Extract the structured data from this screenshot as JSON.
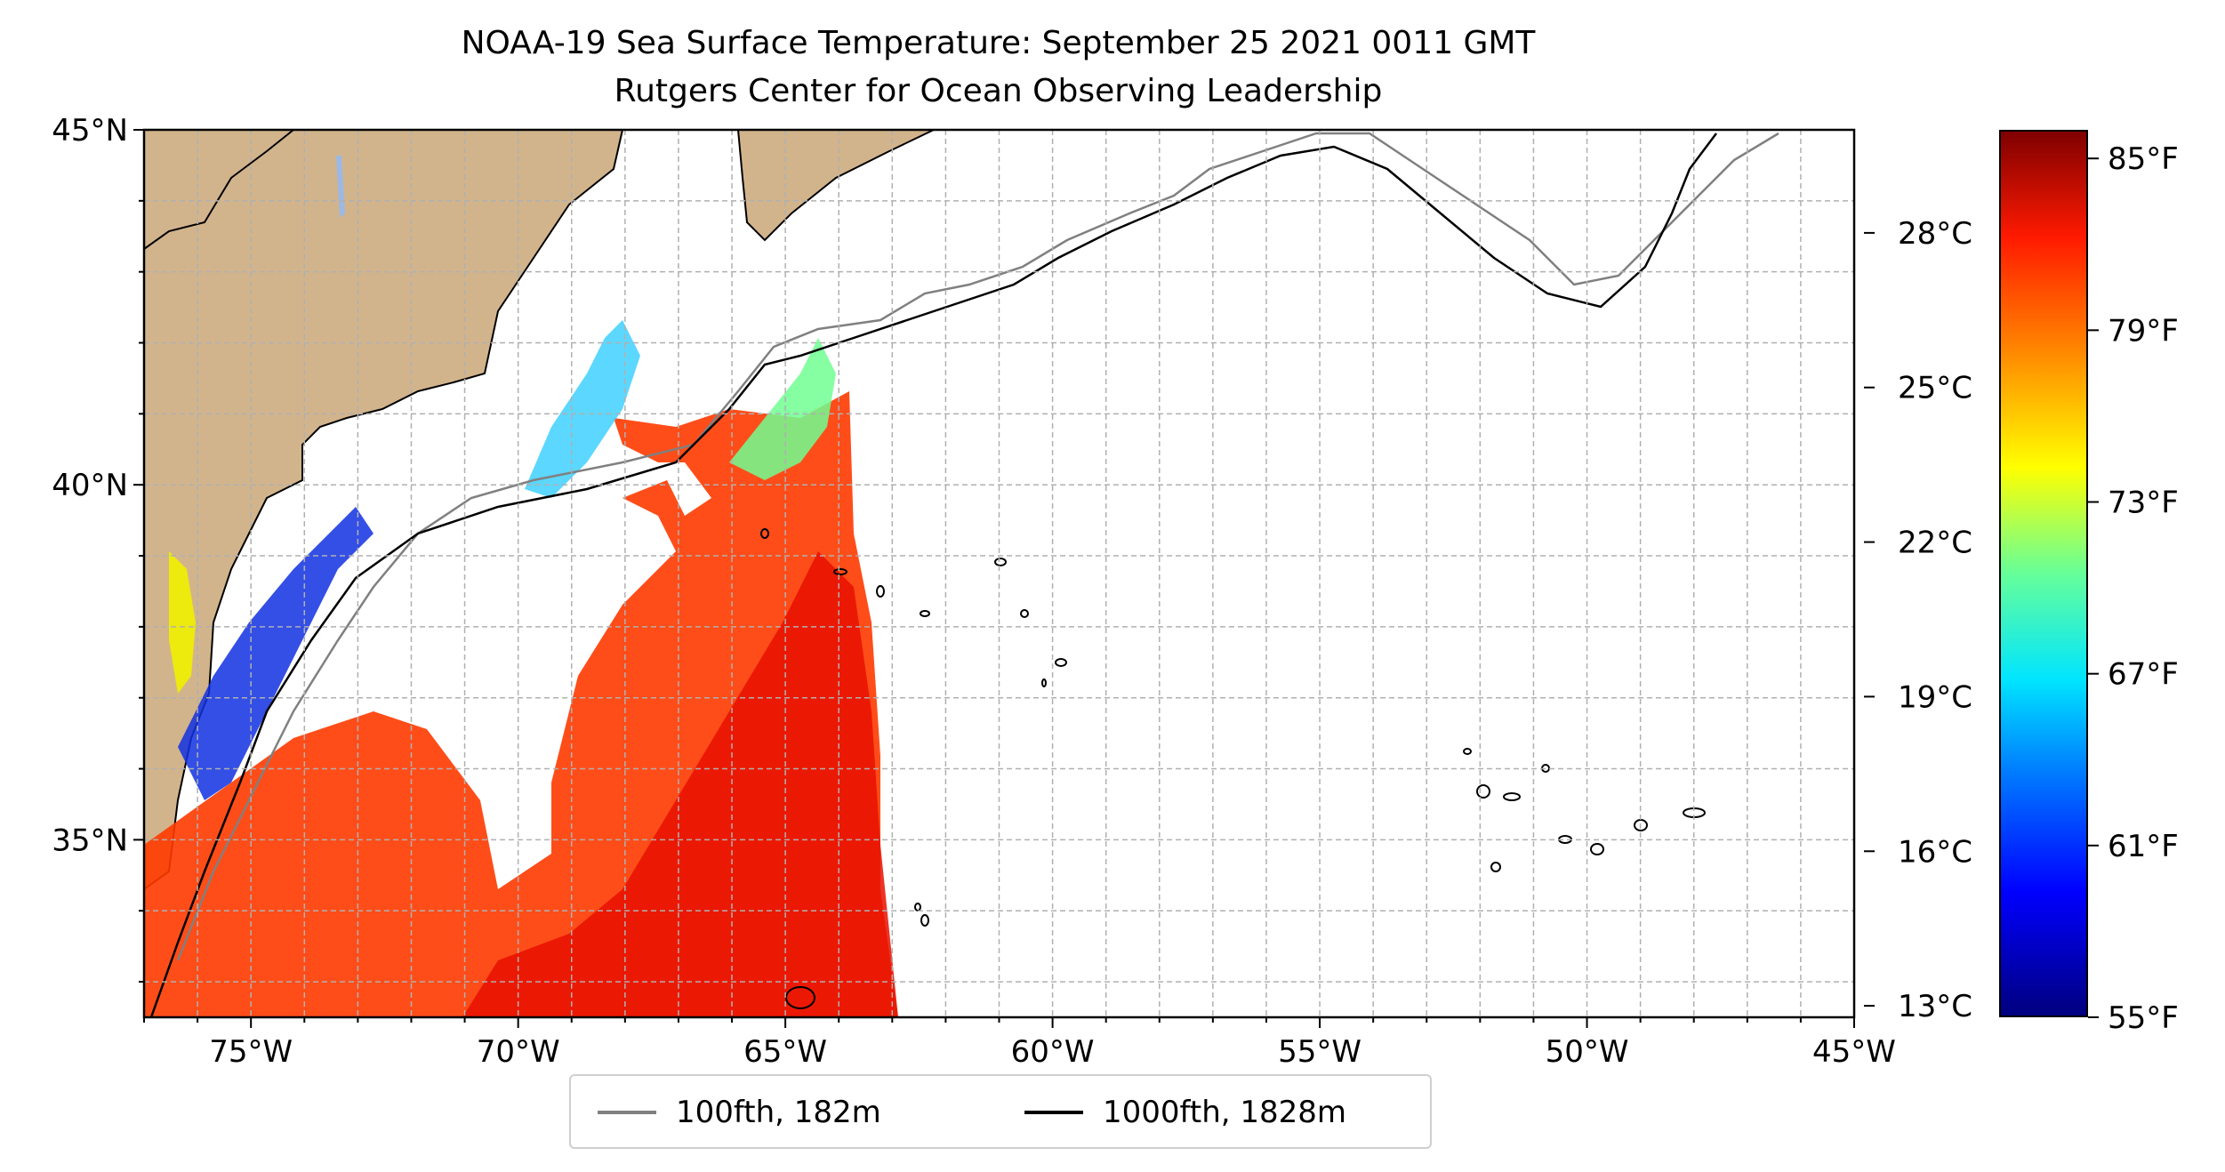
{
  "title": "NOAA-19 Sea Surface Temperature: September 25 2021 0011 GMT",
  "subtitle": "Rutgers Center for Ocean Observing Leadership",
  "map": {
    "lon_range": [
      -77,
      -45
    ],
    "lat_range": [
      32.5,
      45
    ],
    "lon_ticks": [
      "75°W",
      "70°W",
      "65°W",
      "60°W",
      "55°W",
      "50°W",
      "45°W"
    ],
    "lat_ticks": [
      "35°N",
      "40°N",
      "45°N"
    ],
    "grid": true,
    "land_color": "#d2b48c",
    "lake_color": "#9db8e3"
  },
  "legend": {
    "items": [
      {
        "label": "100fth, 182m",
        "color": "#808080"
      },
      {
        "label": "1000fth, 1828m",
        "color": "#000000"
      }
    ],
    "placement": "bottom-center"
  },
  "colorbar": {
    "celsius_ticks": [
      "28°C",
      "25°C",
      "22°C",
      "19°C",
      "16°C",
      "13°C"
    ],
    "fahrenheit_ticks": [
      "85°F",
      "79°F",
      "73°F",
      "67°F",
      "61°F",
      "55°F"
    ],
    "range_f": [
      55,
      86
    ],
    "colormap": "jet"
  }
}
